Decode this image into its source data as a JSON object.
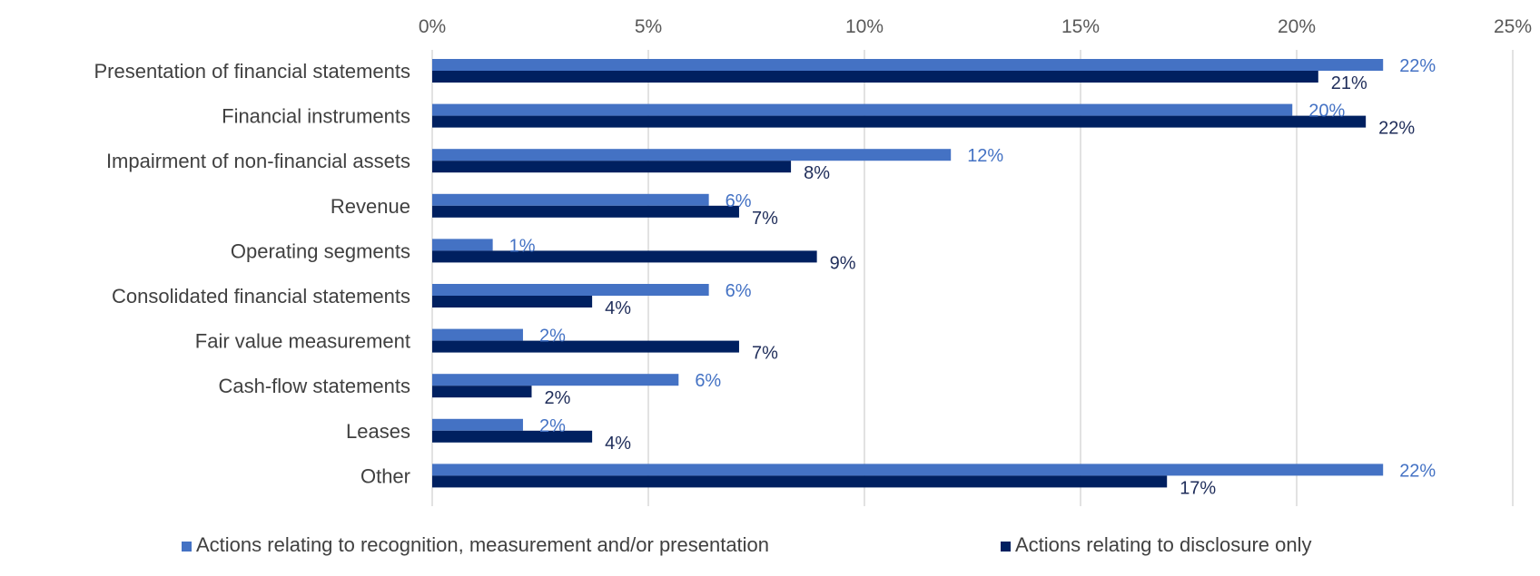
{
  "chart_data": {
    "type": "bar",
    "orientation": "horizontal",
    "categories": [
      "Presentation of financial statements",
      "Financial instruments",
      "Impairment of non-financial assets",
      "Revenue",
      "Operating segments",
      "Consolidated financial statements",
      "Fair value measurement",
      "Cash-flow statements",
      "Leases",
      "Other"
    ],
    "series": [
      {
        "name": "Actions relating to recognition, measurement and/or presentation",
        "color": "#4472C4",
        "values": [
          22,
          20,
          12,
          6,
          1,
          6,
          2,
          6,
          2,
          22
        ],
        "display_values": [
          22,
          19.9,
          12,
          6.4,
          1.4,
          6.4,
          2.1,
          5.7,
          2.1,
          22
        ]
      },
      {
        "name": "Actions relating to disclosure only",
        "color": "#002060",
        "values": [
          21,
          22,
          8,
          7,
          9,
          4,
          7,
          2,
          4,
          17
        ],
        "display_values": [
          20.5,
          21.6,
          8.3,
          7.1,
          8.9,
          3.7,
          7.1,
          2.3,
          3.7,
          17
        ]
      }
    ],
    "x_ticks": [
      "0%",
      "5%",
      "10%",
      "15%",
      "20%",
      "25%"
    ],
    "xlim": [
      0,
      25
    ],
    "value_suffix": "%",
    "grid": true,
    "x_axis_position": "top",
    "legend_position": "bottom",
    "title": "",
    "xlabel": "",
    "ylabel": ""
  }
}
